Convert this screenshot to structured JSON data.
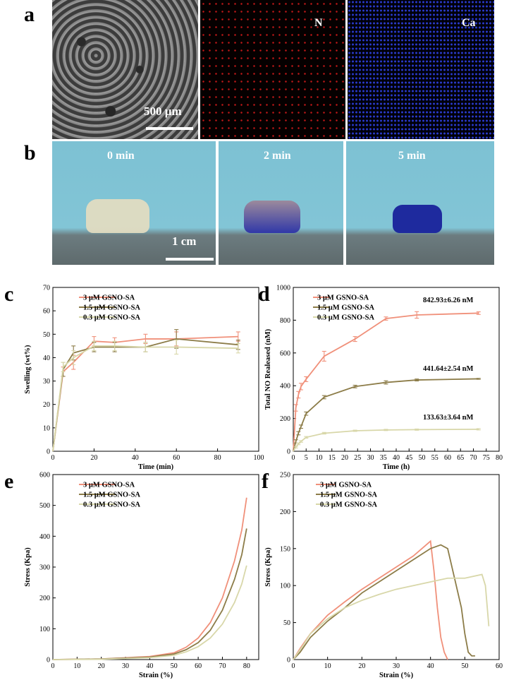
{
  "panel_letters": [
    "a",
    "b",
    "c",
    "d",
    "e",
    "f"
  ],
  "row_a": {
    "sem_scale_label": "500 µm",
    "eds_n_label": "N",
    "eds_ca_label": "Ca"
  },
  "row_b": {
    "times": [
      "0 min",
      "2 min",
      "5 min"
    ],
    "scale_label": "1 cm"
  },
  "colors": {
    "c3": "#f0907a",
    "c15": "#8c7c48",
    "c03": "#d8d7a9"
  },
  "chart_data": [
    {
      "panel": "c",
      "type": "line",
      "xlabel": "Time (min)",
      "ylabel": "Swelling (wt%)",
      "xlim": [
        0,
        100
      ],
      "ylim": [
        0,
        70
      ],
      "xticks": [
        0,
        20,
        40,
        60,
        80,
        100
      ],
      "yticks": [
        0,
        10,
        20,
        30,
        40,
        50,
        60,
        70
      ],
      "legend_position": "top-left",
      "series": [
        {
          "name": "3 µM GSNO-SA",
          "color": "#f0907a",
          "x": [
            0,
            5,
            10,
            20,
            30,
            45,
            60,
            90
          ],
          "y": [
            0,
            34,
            38,
            47,
            46.5,
            48,
            48,
            49
          ],
          "err": [
            0,
            2,
            3,
            2,
            2,
            2,
            3,
            2
          ]
        },
        {
          "name": "1.5 µM GSNO-SA",
          "color": "#8c7c48",
          "x": [
            0,
            5,
            10,
            20,
            30,
            45,
            60,
            90
          ],
          "y": [
            0,
            35,
            42,
            44.5,
            44.5,
            44.5,
            48,
            45.5
          ],
          "err": [
            0,
            3,
            3,
            2,
            2,
            2,
            4,
            2
          ]
        },
        {
          "name": "0.3 µM GSNO-SA",
          "color": "#d8d7a9",
          "x": [
            0,
            5,
            10,
            20,
            30,
            45,
            60,
            90
          ],
          "y": [
            0,
            36,
            40,
            45,
            45,
            44.5,
            44.5,
            44
          ],
          "err": [
            0,
            2,
            3,
            2,
            2,
            2,
            3,
            2
          ]
        }
      ]
    },
    {
      "panel": "d",
      "type": "line",
      "xlabel": "Time (h)",
      "ylabel": "Total NO Realeased (nM)",
      "xlim": [
        0,
        80
      ],
      "ylim": [
        0,
        1000
      ],
      "xticks": [
        0,
        5,
        10,
        15,
        20,
        25,
        30,
        35,
        40,
        45,
        50,
        55,
        60,
        65,
        70,
        75,
        80
      ],
      "yticks": [
        0,
        200,
        400,
        600,
        800,
        1000
      ],
      "legend_position": "top-left",
      "annotations": [
        "842.93±6.26 nM",
        "441.64±2.54 nM",
        "133.63±3.64 nM"
      ],
      "series": [
        {
          "name": "3 µM GSNO-SA",
          "color": "#f0907a",
          "x": [
            0,
            1,
            2,
            3,
            5,
            12,
            24,
            36,
            48,
            72
          ],
          "y": [
            0,
            265,
            345,
            395,
            440,
            580,
            685,
            810,
            832,
            843
          ],
          "err": [
            0,
            20,
            20,
            20,
            15,
            30,
            15,
            10,
            20,
            8
          ]
        },
        {
          "name": "1.5 µM GSNO-SA",
          "color": "#8c7c48",
          "x": [
            0,
            1,
            2,
            3,
            5,
            12,
            24,
            36,
            48,
            72
          ],
          "y": [
            0,
            60,
            110,
            150,
            230,
            330,
            395,
            420,
            435,
            442
          ],
          "err": [
            0,
            10,
            10,
            10,
            10,
            10,
            8,
            10,
            6,
            3
          ]
        },
        {
          "name": "0.3 µM GSNO-SA",
          "color": "#d8d7a9",
          "x": [
            0,
            1,
            2,
            3,
            5,
            12,
            24,
            36,
            48,
            72
          ],
          "y": [
            0,
            25,
            45,
            60,
            85,
            110,
            125,
            130,
            132,
            134
          ],
          "err": [
            0,
            5,
            5,
            5,
            5,
            5,
            4,
            4,
            4,
            4
          ]
        }
      ]
    },
    {
      "panel": "e",
      "type": "line",
      "xlabel": "Strain (%)",
      "ylabel": "Stress (Kpa)",
      "xlim": [
        0,
        85
      ],
      "ylim": [
        0,
        600
      ],
      "xticks": [
        0,
        10,
        20,
        30,
        40,
        50,
        60,
        70,
        80
      ],
      "yticks": [
        0,
        100,
        200,
        300,
        400,
        500,
        600
      ],
      "legend_position": "top-left",
      "series": [
        {
          "name": "3 µM GSNO-SA",
          "color": "#f0907a",
          "x": [
            0,
            20,
            40,
            50,
            55,
            60,
            65,
            70,
            75,
            78,
            80
          ],
          "y": [
            0,
            2,
            10,
            22,
            40,
            70,
            120,
            200,
            320,
            420,
            525
          ]
        },
        {
          "name": "1.5 µM GSNO-SA",
          "color": "#8c7c48",
          "x": [
            0,
            20,
            40,
            50,
            55,
            60,
            65,
            70,
            75,
            78,
            80
          ],
          "y": [
            0,
            2,
            8,
            18,
            32,
            55,
            95,
            160,
            260,
            340,
            425
          ]
        },
        {
          "name": "0.3 µM GSNO-SA",
          "color": "#d8d7a9",
          "x": [
            0,
            20,
            40,
            50,
            55,
            60,
            65,
            70,
            75,
            78,
            80
          ],
          "y": [
            0,
            1,
            6,
            14,
            25,
            42,
            70,
            115,
            185,
            245,
            305
          ]
        }
      ]
    },
    {
      "panel": "f",
      "type": "line",
      "xlabel": "Strain (%)",
      "ylabel": "Stress (Kpa)",
      "xlim": [
        0,
        60
      ],
      "ylim": [
        0,
        250
      ],
      "xticks": [
        0,
        10,
        20,
        30,
        40,
        50,
        60
      ],
      "yticks": [
        0,
        50,
        100,
        150,
        200,
        250
      ],
      "legend_position": "top-left",
      "series": [
        {
          "name": "3 µM GSNO-SA",
          "color": "#f0907a",
          "x": [
            0,
            2,
            5,
            10,
            15,
            20,
            25,
            30,
            35,
            40,
            41,
            42,
            43,
            44,
            45
          ],
          "y": [
            0,
            15,
            35,
            60,
            78,
            95,
            110,
            125,
            140,
            160,
            120,
            70,
            30,
            10,
            0
          ]
        },
        {
          "name": "1.5 µM GSNO-SA",
          "color": "#8c7c48",
          "x": [
            0,
            2,
            5,
            10,
            15,
            20,
            25,
            30,
            35,
            40,
            43,
            45,
            47,
            49,
            50,
            51,
            52,
            53
          ],
          "y": [
            0,
            10,
            30,
            52,
            70,
            90,
            105,
            120,
            135,
            150,
            155,
            150,
            110,
            70,
            35,
            10,
            5,
            5
          ]
        },
        {
          "name": "0.3 µM GSNO-SA",
          "color": "#d8d7a9",
          "x": [
            0,
            3,
            5,
            10,
            15,
            20,
            25,
            30,
            35,
            40,
            45,
            50,
            55,
            56,
            57
          ],
          "y": [
            0,
            20,
            35,
            55,
            70,
            80,
            88,
            95,
            100,
            105,
            110,
            110,
            115,
            100,
            45
          ]
        }
      ]
    }
  ]
}
